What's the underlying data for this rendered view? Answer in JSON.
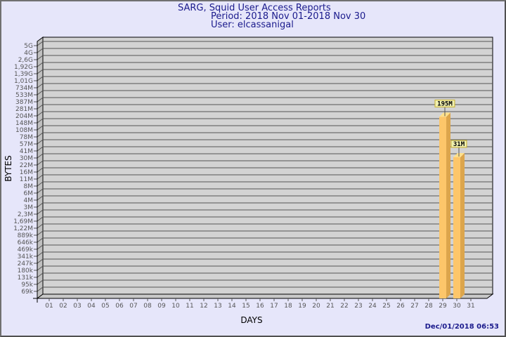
{
  "chart_data": {
    "type": "bar",
    "title": "SARG, Squid User Access Reports",
    "subtitle_lines": [
      "Period: 2018 Nov 01-2018 Nov 30",
      "User: elcassanigal"
    ],
    "xlabel": "DAYS",
    "ylabel": "BYTES",
    "yscale": "log",
    "grid": true,
    "categories": [
      "01",
      "02",
      "03",
      "04",
      "05",
      "06",
      "07",
      "08",
      "09",
      "10",
      "11",
      "12",
      "13",
      "14",
      "15",
      "16",
      "17",
      "18",
      "19",
      "20",
      "21",
      "22",
      "23",
      "24",
      "25",
      "26",
      "27",
      "28",
      "29",
      "30",
      "31"
    ],
    "y_ticks": [
      {
        "label": "5G",
        "value": 5000000000
      },
      {
        "label": "4G",
        "value": 4000000000
      },
      {
        "label": "2,6G",
        "value": 2600000000
      },
      {
        "label": "1,92G",
        "value": 1920000000
      },
      {
        "label": "1,39G",
        "value": 1390000000
      },
      {
        "label": "1,01G",
        "value": 1010000000
      },
      {
        "label": "734M",
        "value": 734000000
      },
      {
        "label": "533M",
        "value": 533000000
      },
      {
        "label": "387M",
        "value": 387000000
      },
      {
        "label": "281M",
        "value": 281000000
      },
      {
        "label": "204M",
        "value": 204000000
      },
      {
        "label": "148M",
        "value": 148000000
      },
      {
        "label": "108M",
        "value": 108000000
      },
      {
        "label": "78M",
        "value": 78000000
      },
      {
        "label": "57M",
        "value": 57000000
      },
      {
        "label": "41M",
        "value": 41000000
      },
      {
        "label": "30M",
        "value": 30000000
      },
      {
        "label": "22M",
        "value": 22000000
      },
      {
        "label": "16M",
        "value": 16000000
      },
      {
        "label": "11M",
        "value": 11000000
      },
      {
        "label": "8M",
        "value": 8000000
      },
      {
        "label": "6M",
        "value": 6000000
      },
      {
        "label": "4M",
        "value": 4000000
      },
      {
        "label": "3M",
        "value": 3000000
      },
      {
        "label": "2,3M",
        "value": 2300000
      },
      {
        "label": "1,69M",
        "value": 1690000
      },
      {
        "label": "1,22M",
        "value": 1220000
      },
      {
        "label": "889k",
        "value": 889000
      },
      {
        "label": "646k",
        "value": 646000
      },
      {
        "label": "469k",
        "value": 469000
      },
      {
        "label": "341k",
        "value": 341000
      },
      {
        "label": "247k",
        "value": 247000
      },
      {
        "label": "180k",
        "value": 180000
      },
      {
        "label": "131k",
        "value": 131000
      },
      {
        "label": "95k",
        "value": 95000
      },
      {
        "label": "69k",
        "value": 69000
      }
    ],
    "bars": [
      {
        "day": "29",
        "value": 195000000,
        "label": "195M"
      },
      {
        "day": "30",
        "value": 31000000,
        "label": "31M"
      }
    ],
    "colors": {
      "bar_front": "#fdc66a",
      "bar_side": "#dca54c",
      "bar_top": "#ffe08a",
      "wall": "#d3d3d3",
      "label_bg": "#f0f0b0",
      "label_border": "#c8b030"
    }
  },
  "timestamp": "Dec/01/2018 06:53"
}
